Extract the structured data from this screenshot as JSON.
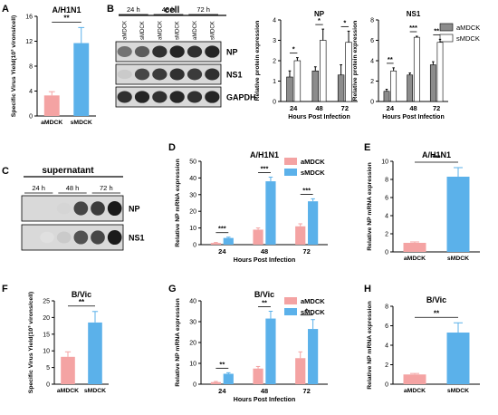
{
  "colors": {
    "aMDCK": "#f4a3a3",
    "sMDCK": "#5bb1ea",
    "gray": "#8c8c8c",
    "white": "#ffffff"
  },
  "panel_letters": {
    "A": "A",
    "B": "B",
    "C": "C",
    "D": "D",
    "E": "E",
    "F": "F",
    "G": "G",
    "H": "H"
  },
  "blots": {
    "b_title": "cell",
    "c_title": "supernatant",
    "lanes": [
      "aMDCK",
      "sMDCK",
      "aMDCK",
      "sMDCK",
      "aMDCK",
      "sMDCK"
    ],
    "times": [
      "24 h",
      "48 h",
      "72 h"
    ],
    "b_rows": [
      "NP",
      "NS1",
      "GAPDH"
    ],
    "c_rows": [
      "NP",
      "NS1"
    ]
  },
  "legend_b": {
    "a": "aMDCK",
    "s": "sMDCK"
  },
  "chart_data": [
    {
      "id": "A",
      "type": "bar",
      "title": "A/H1N1",
      "categories": [
        "aMDCK",
        "sMDCK"
      ],
      "values": [
        3.3,
        11.7
      ],
      "errors": [
        0.6,
        2.5
      ],
      "ylabel": "Specific Virus Yield(10³ virons/cell)",
      "ylim": [
        0,
        16
      ],
      "ticks": [
        0,
        4,
        8,
        12,
        16
      ],
      "sig": [
        "**"
      ]
    },
    {
      "id": "B_NP",
      "type": "bar",
      "title": "NP",
      "categories": [
        "24",
        "48",
        "72"
      ],
      "xlabel": "Hours Post Infection",
      "ylabel": "Relative protein expression",
      "ylim": [
        0,
        4
      ],
      "ticks": [
        0,
        1,
        2,
        3,
        4
      ],
      "series": [
        {
          "name": "aMDCK",
          "values": [
            1.2,
            1.5,
            1.3
          ],
          "errors": [
            0.3,
            0.2,
            0.5
          ]
        },
        {
          "name": "sMDCK",
          "values": [
            2.0,
            3.0,
            2.9
          ],
          "errors": [
            0.15,
            0.55,
            0.55
          ]
        }
      ],
      "sig": [
        "*",
        "*",
        "*"
      ]
    },
    {
      "id": "B_NS1",
      "type": "bar",
      "title": "NS1",
      "categories": [
        "24",
        "48",
        "72"
      ],
      "xlabel": "Hours Post Infection",
      "ylabel": "Relative protein expression",
      "ylim": [
        0,
        8
      ],
      "ticks": [
        0,
        2,
        4,
        6,
        8
      ],
      "series": [
        {
          "name": "aMDCK",
          "values": [
            1.0,
            2.6,
            3.6
          ],
          "errors": [
            0.2,
            0.2,
            0.3
          ]
        },
        {
          "name": "sMDCK",
          "values": [
            3.0,
            6.3,
            5.8
          ],
          "errors": [
            0.3,
            0.1,
            0.3
          ]
        }
      ],
      "sig": [
        "**",
        "***",
        "**"
      ]
    },
    {
      "id": "D",
      "type": "bar",
      "title": "A/H1N1",
      "categories": [
        "24",
        "48",
        "72"
      ],
      "xlabel": "Hours Post Infection",
      "ylabel": "Relative NP mRNA expression",
      "ylim": [
        0,
        50
      ],
      "ticks": [
        0,
        10,
        20,
        30,
        40,
        50
      ],
      "series": [
        {
          "name": "aMDCK",
          "values": [
            1.0,
            9.0,
            11.0
          ],
          "errors": [
            0.3,
            1.0,
            1.5
          ]
        },
        {
          "name": "sMDCK",
          "values": [
            4.0,
            38.0,
            26.0
          ],
          "errors": [
            0.5,
            2.5,
            1.5
          ]
        }
      ],
      "sig": [
        "***",
        "***",
        "***"
      ]
    },
    {
      "id": "E",
      "type": "bar",
      "title": "A/H1N1",
      "categories": [
        "aMDCK",
        "sMDCK"
      ],
      "values": [
        1.0,
        8.3
      ],
      "errors": [
        0.1,
        1.0
      ],
      "ylabel": "Relative NP mRNA expression",
      "ylim": [
        0,
        10
      ],
      "ticks": [
        0,
        2,
        4,
        6,
        8,
        10
      ],
      "sig": [
        "***"
      ]
    },
    {
      "id": "F",
      "type": "bar",
      "title": "B/Vic",
      "categories": [
        "aMDCK",
        "sMDCK"
      ],
      "values": [
        8.2,
        18.5
      ],
      "errors": [
        1.5,
        3.3
      ],
      "ylabel": "Specific Virus Yield(10³ virons/cell)",
      "ylim": [
        0,
        25
      ],
      "ticks": [
        0,
        5,
        10,
        15,
        20,
        25
      ],
      "sig": [
        "**"
      ]
    },
    {
      "id": "G",
      "type": "bar",
      "title": "B/Vic",
      "categories": [
        "24",
        "48",
        "72"
      ],
      "xlabel": "Hours Post Infection",
      "ylabel": "Relative NP mRNA expression",
      "ylim": [
        0,
        40
      ],
      "ticks": [
        0,
        10,
        20,
        30,
        40
      ],
      "series": [
        {
          "name": "aMDCK",
          "values": [
            1.0,
            7.5,
            12.5
          ],
          "errors": [
            0.3,
            1.0,
            3.0
          ]
        },
        {
          "name": "sMDCK",
          "values": [
            5.0,
            31.5,
            26.5
          ],
          "errors": [
            0.5,
            3.5,
            4.5
          ]
        }
      ],
      "sig": [
        "**",
        "**",
        "*"
      ]
    },
    {
      "id": "H",
      "type": "bar",
      "title": "B/Vic",
      "categories": [
        "aMDCK",
        "sMDCK"
      ],
      "values": [
        1.0,
        5.3
      ],
      "errors": [
        0.1,
        1.0
      ],
      "ylabel": "Relative NP mRNA expression",
      "ylim": [
        0,
        8
      ],
      "ticks": [
        0,
        2,
        4,
        6,
        8
      ],
      "sig": [
        "**"
      ]
    }
  ]
}
